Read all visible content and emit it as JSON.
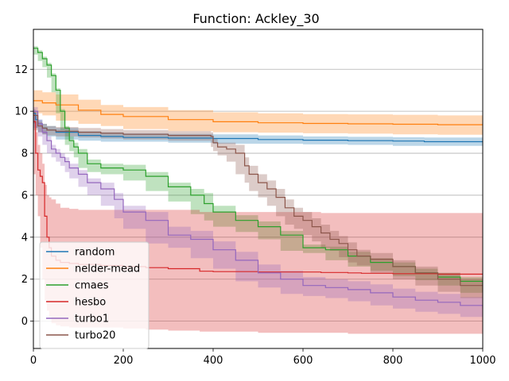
{
  "chart_data": {
    "type": "line",
    "title": "Function: Ackley_30",
    "xlabel": "",
    "ylabel": "",
    "xlim": [
      0,
      1000
    ],
    "ylim": [
      -1.3,
      13.9
    ],
    "xticks": [
      0,
      200,
      400,
      600,
      800,
      1000
    ],
    "yticks": [
      0,
      2,
      4,
      6,
      8,
      10,
      12
    ],
    "grid": "horizontal",
    "legend_position": "lower-left",
    "series": [
      {
        "name": "random",
        "color": "#1f77b4",
        "x": [
          0,
          5,
          10,
          20,
          30,
          50,
          100,
          150,
          200,
          300,
          400,
          500,
          600,
          700,
          800,
          870,
          1000
        ],
        "y": [
          9.9,
          9.6,
          9.4,
          9.2,
          9.1,
          9.0,
          8.85,
          8.8,
          8.75,
          8.72,
          8.7,
          8.65,
          8.62,
          8.6,
          8.58,
          8.55,
          8.55
        ],
        "lo": [
          9.7,
          9.4,
          9.2,
          9.0,
          8.9,
          8.8,
          8.65,
          8.6,
          8.55,
          8.55,
          8.5,
          8.45,
          8.45,
          8.42,
          8.4,
          8.35,
          8.35
        ],
        "hi": [
          10.1,
          9.8,
          9.6,
          9.4,
          9.3,
          9.2,
          9.05,
          9.0,
          8.95,
          8.92,
          8.9,
          8.85,
          8.8,
          8.78,
          8.76,
          8.75,
          8.75
        ]
      },
      {
        "name": "nelder-mead",
        "color": "#ff7f0e",
        "x": [
          0,
          20,
          50,
          100,
          150,
          200,
          300,
          400,
          500,
          600,
          700,
          800,
          900,
          1000
        ],
        "y": [
          10.5,
          10.4,
          10.3,
          10.05,
          9.85,
          9.75,
          9.6,
          9.5,
          9.45,
          9.42,
          9.4,
          9.38,
          9.36,
          9.33
        ],
        "lo": [
          10.0,
          9.9,
          9.8,
          9.55,
          9.4,
          9.3,
          9.15,
          9.05,
          9.0,
          8.98,
          8.95,
          8.93,
          8.9,
          8.88
        ],
        "hi": [
          11.0,
          10.9,
          10.8,
          10.55,
          10.3,
          10.2,
          10.05,
          9.95,
          9.9,
          9.86,
          9.85,
          9.83,
          9.8,
          9.78
        ]
      },
      {
        "name": "cmaes",
        "color": "#2ca02c",
        "x": [
          0,
          10,
          20,
          30,
          40,
          50,
          60,
          70,
          80,
          90,
          100,
          120,
          150,
          200,
          250,
          300,
          350,
          380,
          400,
          450,
          500,
          550,
          600,
          650,
          700,
          750,
          800,
          850,
          900,
          950,
          1000
        ],
        "y": [
          13.0,
          12.8,
          12.5,
          12.2,
          11.7,
          11.0,
          10.0,
          9.2,
          8.6,
          8.3,
          8.0,
          7.5,
          7.3,
          7.2,
          6.9,
          6.4,
          6.0,
          5.6,
          5.2,
          4.8,
          4.5,
          4.1,
          3.5,
          3.4,
          3.1,
          2.8,
          2.6,
          2.3,
          2.1,
          1.9,
          1.7
        ],
        "lo": [
          12.9,
          12.7,
          12.4,
          12.1,
          11.6,
          10.9,
          9.9,
          9.1,
          8.4,
          8.1,
          7.8,
          7.3,
          7.1,
          7.0,
          6.7,
          6.2,
          5.7,
          5.1,
          4.8,
          4.5,
          4.25,
          3.9,
          3.35,
          3.25,
          2.9,
          2.6,
          2.4,
          2.15,
          1.95,
          1.7,
          1.35
        ],
        "hi": [
          13.1,
          12.9,
          12.6,
          12.3,
          11.8,
          11.1,
          10.1,
          9.3,
          8.8,
          8.5,
          8.2,
          7.7,
          7.5,
          7.45,
          7.1,
          6.6,
          6.3,
          6.1,
          5.5,
          5.05,
          4.75,
          4.3,
          3.65,
          3.55,
          3.3,
          3.0,
          2.8,
          2.5,
          2.3,
          2.1,
          2.0
        ]
      },
      {
        "name": "hesbo",
        "color": "#d62728",
        "x": [
          0,
          5,
          10,
          15,
          20,
          25,
          30,
          35,
          40,
          50,
          60,
          80,
          100,
          150,
          200,
          250,
          300,
          370,
          400,
          500,
          640,
          700,
          730,
          800,
          900,
          1000
        ],
        "y": [
          9.5,
          8.0,
          7.2,
          6.9,
          6.6,
          5.0,
          4.0,
          3.5,
          3.1,
          2.9,
          2.8,
          2.75,
          2.7,
          2.65,
          2.6,
          2.55,
          2.5,
          2.38,
          2.36,
          2.34,
          2.32,
          2.3,
          2.28,
          2.26,
          2.24,
          2.22
        ],
        "lo": [
          9.0,
          7.0,
          6.0,
          5.0,
          3.5,
          2.0,
          1.0,
          0.5,
          0.2,
          -0.1,
          -0.2,
          -0.25,
          -0.3,
          -0.3,
          -0.3,
          -0.35,
          -0.4,
          -0.45,
          -0.5,
          -0.5,
          -0.55,
          -0.55,
          -0.6,
          -0.6,
          -0.6,
          -0.6
        ],
        "hi": [
          10.0,
          9.0,
          8.4,
          8.0,
          7.5,
          6.5,
          6.0,
          5.9,
          5.8,
          5.6,
          5.4,
          5.35,
          5.3,
          5.3,
          5.3,
          5.3,
          5.3,
          5.2,
          5.2,
          5.2,
          5.15,
          5.15,
          5.15,
          5.15,
          5.15,
          5.15
        ]
      },
      {
        "name": "turbo1",
        "color": "#9467bd",
        "x": [
          0,
          10,
          20,
          30,
          40,
          50,
          60,
          70,
          80,
          100,
          120,
          150,
          180,
          200,
          250,
          300,
          350,
          400,
          450,
          500,
          550,
          600,
          650,
          700,
          750,
          800,
          850,
          900,
          950,
          1000
        ],
        "y": [
          10.0,
          9.4,
          9.0,
          8.6,
          8.2,
          8.0,
          7.8,
          7.6,
          7.3,
          7.0,
          6.6,
          6.3,
          5.8,
          5.2,
          4.8,
          4.1,
          3.9,
          3.4,
          2.9,
          2.3,
          2.0,
          1.7,
          1.6,
          1.5,
          1.35,
          1.15,
          1.0,
          0.9,
          0.75,
          0.62
        ],
        "lo": [
          9.8,
          9.2,
          8.8,
          8.4,
          8.0,
          7.8,
          7.6,
          7.4,
          7.1,
          6.8,
          6.4,
          6.0,
          5.5,
          4.9,
          4.4,
          3.7,
          3.5,
          3.0,
          2.5,
          1.9,
          1.6,
          1.3,
          1.2,
          1.1,
          0.95,
          0.75,
          0.6,
          0.45,
          0.35,
          0.2
        ],
        "hi": [
          10.2,
          9.6,
          9.2,
          8.8,
          8.4,
          8.2,
          8.0,
          7.8,
          7.5,
          7.2,
          6.8,
          6.6,
          6.1,
          5.5,
          5.2,
          4.5,
          4.3,
          3.8,
          3.3,
          2.7,
          2.4,
          2.1,
          2.0,
          1.9,
          1.75,
          1.55,
          1.4,
          1.3,
          1.15,
          1.05
        ]
      },
      {
        "name": "turbo20",
        "color": "#8c564b",
        "x": [
          0,
          10,
          20,
          30,
          50,
          100,
          150,
          200,
          300,
          395,
          400,
          410,
          430,
          450,
          470,
          480,
          500,
          520,
          540,
          560,
          580,
          600,
          620,
          640,
          660,
          680,
          700,
          720,
          750,
          800,
          850,
          900,
          950,
          1000
        ],
        "y": [
          9.8,
          9.3,
          9.2,
          9.1,
          9.05,
          9.0,
          8.95,
          8.9,
          8.85,
          8.8,
          8.5,
          8.3,
          8.2,
          8.0,
          7.4,
          7.0,
          6.6,
          6.3,
          5.9,
          5.4,
          5.0,
          4.8,
          4.5,
          4.2,
          3.9,
          3.7,
          3.4,
          3.1,
          2.95,
          2.6,
          2.3,
          2.0,
          1.7,
          1.4
        ],
        "lo": [
          9.6,
          9.1,
          9.0,
          8.9,
          8.85,
          8.8,
          8.75,
          8.7,
          8.65,
          8.6,
          8.3,
          8.1,
          7.9,
          7.6,
          7.0,
          6.6,
          6.2,
          5.9,
          5.5,
          5.0,
          4.6,
          4.4,
          4.1,
          3.8,
          3.5,
          3.35,
          3.05,
          2.8,
          2.65,
          2.3,
          2.0,
          1.7,
          1.4,
          1.1
        ],
        "hi": [
          10.0,
          9.5,
          9.4,
          9.3,
          9.25,
          9.2,
          9.15,
          9.1,
          9.05,
          9.0,
          8.7,
          8.5,
          8.5,
          8.4,
          7.8,
          7.4,
          7.0,
          6.7,
          6.3,
          5.8,
          5.4,
          5.2,
          4.9,
          4.6,
          4.3,
          4.05,
          3.75,
          3.4,
          3.25,
          2.9,
          2.6,
          2.3,
          2.0,
          1.7
        ]
      }
    ]
  }
}
